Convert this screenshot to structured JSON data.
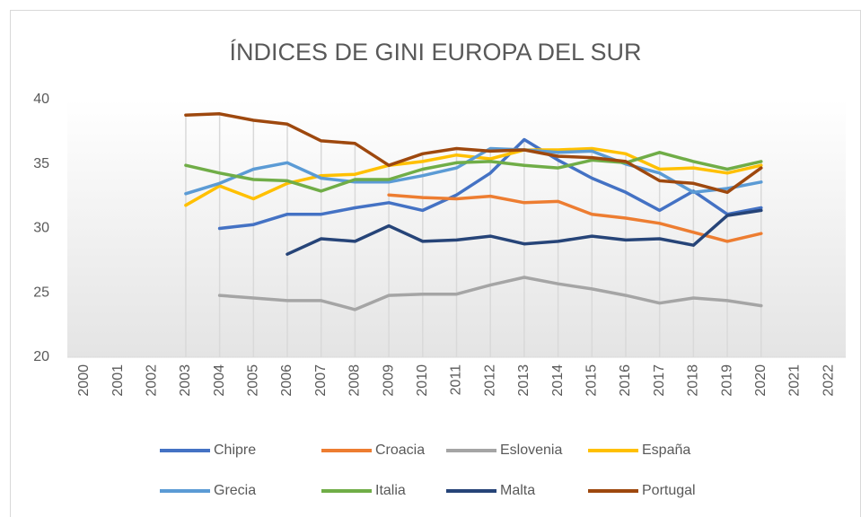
{
  "chart_data": {
    "type": "line",
    "title": "ÍNDICES DE GINI EUROPA DEL SUR",
    "categories": [
      "2000",
      "2001",
      "2002",
      "2003",
      "2004",
      "2005",
      "2006",
      "2007",
      "2008",
      "2009",
      "2010",
      "2011",
      "2012",
      "2013",
      "2014",
      "2015",
      "2016",
      "2017",
      "2018",
      "2019",
      "2020",
      "2021",
      "2022"
    ],
    "ylim": [
      20,
      40
    ],
    "yticks": [
      20,
      25,
      30,
      35,
      40
    ],
    "drop_lines": true,
    "legend": "bottom",
    "series": [
      {
        "name": "Chipre",
        "color": "#4472c4",
        "values": [
          null,
          null,
          null,
          null,
          30.0,
          30.3,
          31.1,
          31.1,
          31.6,
          32.0,
          31.4,
          32.6,
          34.3,
          36.9,
          35.3,
          33.9,
          32.8,
          31.4,
          32.9,
          31.1,
          31.6,
          null,
          null
        ]
      },
      {
        "name": "Croacia",
        "color": "#ed7d31",
        "values": [
          null,
          null,
          null,
          null,
          null,
          null,
          null,
          null,
          null,
          32.6,
          32.4,
          32.3,
          32.5,
          32.0,
          32.1,
          31.1,
          30.8,
          30.4,
          29.7,
          29.0,
          29.6,
          null,
          null
        ]
      },
      {
        "name": "Eslovenia",
        "color": "#a5a5a5",
        "values": [
          null,
          null,
          null,
          null,
          24.8,
          24.6,
          24.4,
          24.4,
          23.7,
          24.8,
          24.9,
          24.9,
          25.6,
          26.2,
          25.7,
          25.3,
          24.8,
          24.2,
          24.6,
          24.4,
          24.0,
          null,
          null
        ]
      },
      {
        "name": "España",
        "color": "#ffc000",
        "values": [
          null,
          null,
          null,
          31.8,
          33.3,
          32.3,
          33.5,
          34.1,
          34.2,
          34.9,
          35.2,
          35.7,
          35.4,
          36.1,
          36.1,
          36.2,
          35.8,
          34.6,
          34.7,
          34.3,
          34.9,
          null,
          null
        ]
      },
      {
        "name": "Grecia",
        "color": "#5b9bd5",
        "values": [
          null,
          null,
          null,
          32.7,
          33.5,
          34.6,
          35.1,
          33.9,
          33.6,
          33.6,
          34.1,
          34.7,
          36.2,
          36.1,
          35.9,
          36.0,
          35.0,
          34.3,
          32.8,
          33.1,
          33.6,
          null,
          null
        ]
      },
      {
        "name": "Italia",
        "color": "#70ad47",
        "values": [
          null,
          null,
          null,
          34.9,
          34.3,
          33.8,
          33.7,
          32.9,
          33.8,
          33.8,
          34.6,
          35.1,
          35.2,
          34.9,
          34.7,
          35.3,
          35.1,
          35.9,
          35.2,
          34.6,
          35.2,
          null,
          null
        ]
      },
      {
        "name": "Malta",
        "color": "#264478",
        "values": [
          null,
          null,
          null,
          null,
          null,
          null,
          28.0,
          29.2,
          29.0,
          30.2,
          29.0,
          29.1,
          29.4,
          28.8,
          29.0,
          29.4,
          29.1,
          29.2,
          28.7,
          31.0,
          31.4,
          null,
          null
        ]
      },
      {
        "name": "Portugal",
        "color": "#9e480e",
        "values": [
          null,
          null,
          null,
          38.8,
          38.9,
          38.4,
          38.1,
          36.8,
          36.6,
          34.9,
          35.8,
          36.2,
          36.0,
          36.1,
          35.6,
          35.5,
          35.2,
          33.7,
          33.5,
          32.8,
          34.7,
          null,
          null
        ]
      }
    ]
  }
}
